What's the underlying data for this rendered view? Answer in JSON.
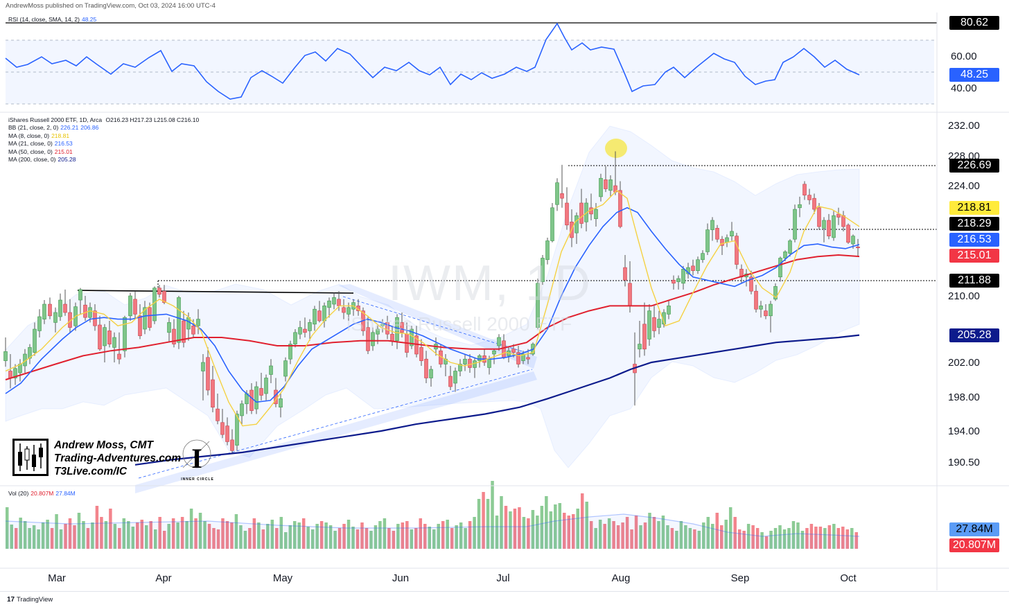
{
  "header": {
    "published": "AndrewMoss published on TradingView.com, Oct 03, 2024 16:00 UTC-4"
  },
  "rsi_panel": {
    "legend_label": "RSI (14, close, SMA, 14, 2)",
    "legend_value": "48.25",
    "ticks": [
      "60.00",
      "40.00"
    ],
    "tags": [
      {
        "label": "80.62",
        "bg": "#000000",
        "fg": "#ffffff"
      },
      {
        "label": "48.25",
        "bg": "#2962ff",
        "fg": "#ffffff"
      }
    ]
  },
  "price_panel": {
    "title": "iShares Russell 2000 ETF, 1D, Arca",
    "ohlc": "O216.23 H217.23 L215.08 C216.10",
    "indicators": [
      {
        "label": "BB (21, close, 2, 0)",
        "value": "226.21",
        "value2": "206.86",
        "color": "#2962ff"
      },
      {
        "label": "MA (8, close, 0)",
        "value": "218.81",
        "color": "#f5d142"
      },
      {
        "label": "MA (21, close, 0)",
        "value": "216.53",
        "color": "#2962ff"
      },
      {
        "label": "MA (50, close, 0)",
        "value": "215.01",
        "color": "#e0202e"
      },
      {
        "label": "MA (200, close, 0)",
        "value": "205.28",
        "color": "#0d1b8c"
      }
    ],
    "ticks": [
      "232.00",
      "228.00",
      "224.00",
      "210.00",
      "202.00",
      "198.00",
      "194.00",
      "190.50"
    ],
    "tags": [
      {
        "label": "226.69",
        "bg": "#000000",
        "fg": "#ffffff"
      },
      {
        "label": "218.81",
        "bg": "#ffeb3b",
        "fg": "#000000"
      },
      {
        "label": "218.29",
        "bg": "#000000",
        "fg": "#ffffff"
      },
      {
        "label": "216.53",
        "bg": "#2962ff",
        "fg": "#ffffff"
      },
      {
        "label": "215.01",
        "bg": "#f23645",
        "fg": "#ffffff"
      },
      {
        "label": "211.88",
        "bg": "#000000",
        "fg": "#ffffff"
      },
      {
        "label": "205.28",
        "bg": "#0d1b8c",
        "fg": "#ffffff"
      }
    ],
    "watermark_symbol": "IWM, 1D",
    "watermark_name": "iShares Russell 2000 ETF"
  },
  "volume_panel": {
    "legend_label": "Vol (20)",
    "legend_value": "20.807M",
    "legend_value2": "27.84M",
    "tags": [
      {
        "label": "27.84M",
        "bg": "#5b9cf6",
        "fg": "#000000"
      },
      {
        "label": "20.807M",
        "bg": "#f23645",
        "fg": "#ffffff"
      }
    ]
  },
  "time_axis": [
    "Mar",
    "Apr",
    "May",
    "Jun",
    "Jul",
    "Aug",
    "Sep",
    "Oct"
  ],
  "branding": {
    "line1": "Andrew Moss, CMT",
    "line2": "Trading-Adventures.com",
    "line3": "T3Live.com/IC",
    "ic_text": "INNER CIRCLE"
  },
  "footer": {
    "logo": "17",
    "text": "TradingView"
  },
  "chart_data": {
    "type": "candlestick",
    "symbol": "IWM",
    "timeframe": "1D",
    "last": {
      "open": 216.23,
      "high": 217.23,
      "low": 215.08,
      "close": 216.1
    },
    "horizontal_levels": [
      226.69,
      218.29,
      211.88
    ],
    "rsi_levels": {
      "overbought_line": 80.62,
      "current": 48.25
    },
    "ma_current": {
      "ma8": 218.81,
      "ma21": 216.53,
      "ma50": 215.01,
      "ma200": 205.28
    },
    "bb_current": {
      "upper": 226.21,
      "lower": 206.86
    },
    "volume_current": {
      "vol": 20.807,
      "vol_ma20": 27.84,
      "unit": "M"
    }
  }
}
